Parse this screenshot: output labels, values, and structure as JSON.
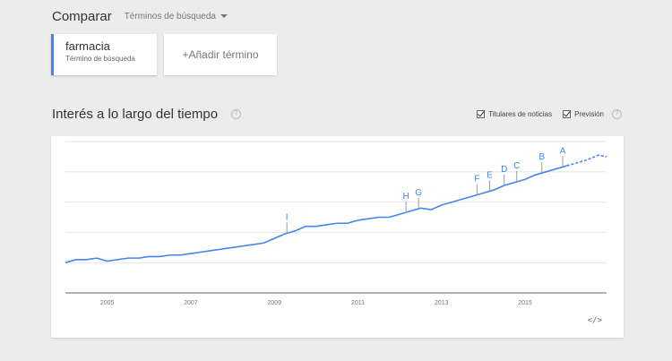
{
  "header": {
    "title": "Comparar",
    "dropdown_label": "Términos de búsqueda"
  },
  "terms": [
    {
      "term": "farmacia",
      "subtitle": "Término de búsqueda",
      "color": "#4285f4"
    }
  ],
  "add_term_label": "+Añadir término",
  "section": {
    "title": "Interés a lo largo del tiempo",
    "help_icon": "?",
    "options": [
      {
        "label": "Titulares de noticias",
        "checked": true
      },
      {
        "label": "Previsión",
        "checked": true
      }
    ]
  },
  "embed_label": "</>",
  "chart_data": {
    "type": "line",
    "x_tick_labels": [
      "2005",
      "2007",
      "2009",
      "2011",
      "2013",
      "2015"
    ],
    "x_range": [
      2004.0,
      2016.95
    ],
    "y_range": [
      0,
      100
    ],
    "grid": true,
    "series": [
      {
        "name": "farmacia",
        "color": "#4285f4",
        "x": [
          2004.0,
          2004.25,
          2004.5,
          2004.75,
          2005.0,
          2005.25,
          2005.5,
          2005.75,
          2006.0,
          2006.25,
          2006.5,
          2006.75,
          2007.0,
          2007.25,
          2007.5,
          2007.75,
          2008.0,
          2008.25,
          2008.5,
          2008.75,
          2009.0,
          2009.25,
          2009.5,
          2009.75,
          2010.0,
          2010.25,
          2010.5,
          2010.75,
          2011.0,
          2011.25,
          2011.5,
          2011.75,
          2012.0,
          2012.25,
          2012.5,
          2012.75,
          2013.0,
          2013.25,
          2013.5,
          2013.75,
          2014.0,
          2014.25,
          2014.5,
          2014.75,
          2015.0,
          2015.25,
          2015.5,
          2015.75,
          2016.0,
          2016.25,
          2016.5,
          2016.75,
          2016.95
        ],
        "y": [
          20,
          22,
          22,
          23,
          21,
          22,
          23,
          23,
          24,
          24,
          25,
          25,
          26,
          27,
          28,
          29,
          30,
          31,
          32,
          33,
          36,
          39,
          41,
          44,
          44,
          45,
          46,
          46,
          48,
          49,
          50,
          50,
          52,
          54,
          56,
          55,
          58,
          60,
          62,
          64,
          66,
          68,
          71,
          73,
          75,
          78,
          80,
          82,
          84,
          86,
          88,
          91,
          90
        ]
      }
    ],
    "annotations": [
      {
        "label": "I",
        "x": 2009.3
      },
      {
        "label": "H",
        "x": 2012.15
      },
      {
        "label": "G",
        "x": 2012.45
      },
      {
        "label": "F",
        "x": 2013.85
      },
      {
        "label": "E",
        "x": 2014.15
      },
      {
        "label": "D",
        "x": 2014.5
      },
      {
        "label": "C",
        "x": 2014.8
      },
      {
        "label": "B",
        "x": 2015.4
      },
      {
        "label": "A",
        "x": 2015.9
      }
    ],
    "forecast_start": 2016.0
  }
}
